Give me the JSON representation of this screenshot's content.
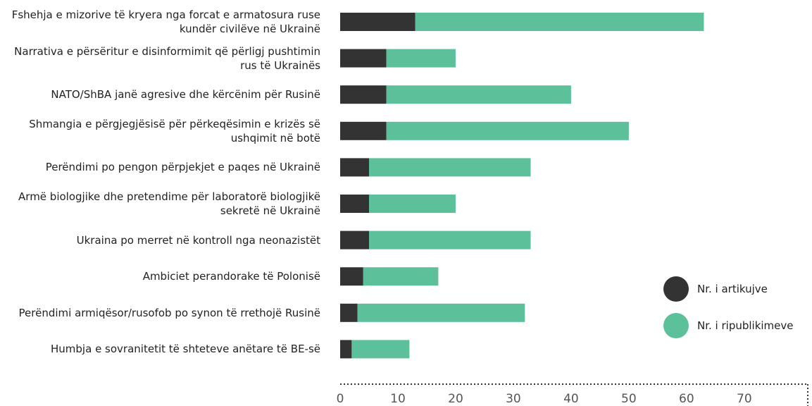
{
  "chart_data": {
    "type": "stacked_barh",
    "categories": [
      "Fshehja e mizorive të kryera nga forcat e armatosura ruse kundër civilëve në Ukrainë",
      "Narrativa e përsëritur e disinformimit që përligj pushtimin rus të Ukrainës",
      "NATO/ShBA janë agresive dhe kërcënim për Rusinë",
      "Shmangia e përgjegjësisë për përkeqësimin e krizës së ushqimit në botë",
      "Perëndimi po pengon përpjekjet e paqes në Ukrainë",
      "Armë biologjike dhe pretendime për laboratorë biologjikë sekretë në Ukrainë",
      "Ukraina po merret në kontroll nga neonazistët",
      "Ambiciet perandorake të Polonisë",
      "Perëndimi armiqësor/rusofob po synon të rrethojë Rusinë",
      "Humbja e sovranitetit të shteteve anëtare të BE-së"
    ],
    "series": [
      {
        "name": "Nr. i artikujve",
        "color": "#333333",
        "values": [
          13,
          8,
          8,
          8,
          5,
          5,
          5,
          4,
          3,
          2
        ]
      },
      {
        "name": "Nr. i ripublikimeve",
        "color": "#5cc09b",
        "values": [
          50,
          12,
          32,
          42,
          28,
          15,
          28,
          13,
          29,
          10
        ]
      }
    ],
    "xlim": [
      0,
      81
    ],
    "xticks": [
      0,
      10,
      20,
      30,
      40,
      50,
      60,
      70
    ],
    "legend": "right"
  }
}
